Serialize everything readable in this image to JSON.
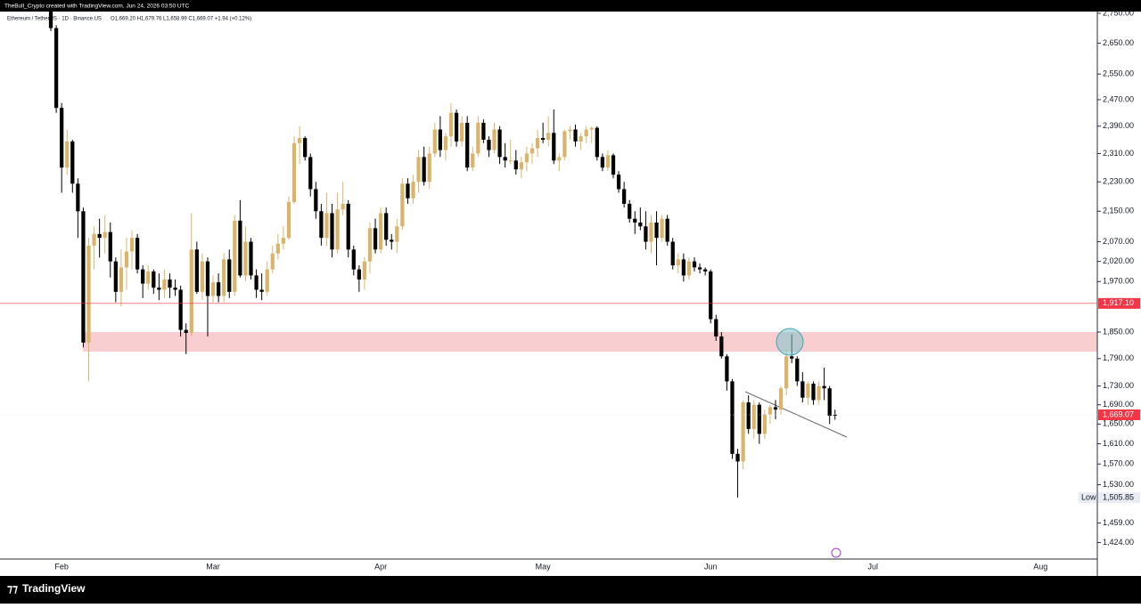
{
  "header": {
    "credit": "TheBull_Crypto created with TradingView.com, Jun 24, 2026 03:50 UTC",
    "symbol": "Ethereum / TetherUS · 1D · Binance.US",
    "ohlc": "O1,669.20 H1,679.76 L1,658.99 C1,669.07 +1.94 (+0.12%)"
  },
  "footer": {
    "brand": "TradingView"
  },
  "chart_data": {
    "type": "candlestick",
    "log_scale": true,
    "bull_color": "#dbb46c",
    "bear_color": "#000000",
    "categories": [
      null,
      null,
      "Feb",
      null,
      null,
      null,
      null,
      null,
      null,
      null,
      null,
      null,
      null,
      null,
      null,
      null,
      null,
      null,
      null,
      null,
      null,
      null,
      null,
      null,
      null,
      null,
      null,
      null,
      null,
      null,
      "Mar",
      null,
      null,
      null,
      null,
      null,
      null,
      null,
      null,
      null,
      null,
      null,
      null,
      null,
      null,
      null,
      null,
      null,
      null,
      null,
      null,
      null,
      null,
      null,
      null,
      null,
      null,
      null,
      null,
      null,
      null,
      "Apr",
      null,
      null,
      null,
      null,
      null,
      null,
      null,
      null,
      null,
      null,
      null,
      null,
      null,
      null,
      null,
      null,
      null,
      null,
      null,
      null,
      null,
      null,
      null,
      null,
      null,
      null,
      null,
      null,
      null,
      "May",
      null,
      null,
      null,
      null,
      null,
      null,
      null,
      null,
      null,
      null,
      null,
      null,
      null,
      null,
      null,
      null,
      null,
      null,
      null,
      null,
      null,
      null,
      null,
      null,
      null,
      null,
      null,
      null,
      null,
      null,
      "Jun",
      null,
      null,
      null,
      null,
      null,
      null,
      null,
      null,
      null,
      null,
      null,
      null,
      null,
      null,
      null,
      null,
      null,
      null,
      null,
      null,
      null,
      null,
      null,
      null,
      null,
      null,
      null,
      null,
      null,
      "Jul",
      null,
      null,
      null,
      null,
      null,
      null,
      null,
      null,
      null,
      null,
      null,
      null,
      null,
      null,
      null,
      null,
      null,
      null,
      null,
      null,
      null,
      null,
      null,
      null,
      null,
      null,
      null,
      null,
      null,
      null,
      "Aug",
      null,
      null,
      null,
      null,
      null,
      null,
      null,
      null,
      null,
      null
    ],
    "open": [
      2760,
      2700,
      2445,
      2270,
      2345,
      2225,
      2150,
      1826,
      2060,
      2090,
      2080,
      2095,
      2020,
      1945,
      2005,
      2045,
      2080,
      2000,
      1965,
      1995,
      1955,
      1950,
      1975,
      1955,
      1950,
      1855,
      1848,
      2050,
      1945,
      2020,
      1935,
      1968,
      1935,
      2025,
      1945,
      2125,
      1985,
      2070,
      1985,
      1950,
      1945,
      2000,
      2040,
      2065,
      2080,
      2175,
      2340,
      2355,
      2300,
      2210,
      2150,
      2080,
      2145,
      2050,
      2155,
      2170,
      2050,
      2000,
      1975,
      2020,
      2105,
      2050,
      2145,
      2075,
      2070,
      2110,
      2225,
      2185,
      2230,
      2300,
      2230,
      2310,
      2380,
      2320,
      2360,
      2430,
      2345,
      2400,
      2270,
      2310,
      2400,
      2350,
      2320,
      2380,
      2300,
      2290,
      2290,
      2265,
      2285,
      2310,
      2325,
      2355,
      2350,
      2370,
      2290,
      2300,
      2375,
      2380,
      2345,
      2360,
      2380,
      2385,
      2300,
      2270,
      2305,
      2250,
      2210,
      2170,
      2130,
      2120,
      2110,
      2070,
      2120,
      2080,
      2130,
      2070,
      2010,
      2025,
      1985,
      2020,
      2005,
      2000,
      1995,
      1880,
      1840,
      1795,
      1740,
      1590,
      1575,
      1695,
      1640,
      1690,
      1630,
      1670,
      1685,
      1680,
      1725,
      1795,
      1790,
      1740,
      1705,
      1735,
      1700,
      1730,
      1725,
      1669.2,
      null,
      null,
      null,
      null,
      null,
      null,
      null,
      null,
      null,
      null,
      null,
      null,
      null,
      null,
      null,
      null,
      null,
      null,
      null,
      null,
      null,
      null,
      null,
      null,
      null,
      null,
      null,
      null,
      null,
      null,
      null,
      null,
      null,
      null,
      null,
      null,
      null,
      null,
      null,
      null,
      null,
      null,
      null,
      null,
      null,
      null,
      null,
      null
    ],
    "high": [
      2790,
      2710,
      2460,
      2380,
      2350,
      2240,
      2160,
      2080,
      2110,
      2130,
      2140,
      2120,
      2030,
      2050,
      2080,
      2100,
      2090,
      2010,
      2010,
      2000,
      1990,
      2000,
      1990,
      1975,
      1960,
      1870,
      2145,
      2070,
      2040,
      2030,
      1985,
      1990,
      2040,
      2050,
      2140,
      2180,
      2110,
      2080,
      2000,
      1990,
      2020,
      2060,
      2090,
      2110,
      2190,
      2360,
      2390,
      2360,
      2310,
      2230,
      2170,
      2200,
      2170,
      2200,
      2230,
      2180,
      2060,
      2010,
      2030,
      2120,
      2130,
      2160,
      2160,
      2090,
      2130,
      2240,
      2240,
      2250,
      2320,
      2330,
      2330,
      2400,
      2420,
      2370,
      2460,
      2440,
      2420,
      2420,
      2330,
      2420,
      2410,
      2360,
      2400,
      2390,
      2340,
      2350,
      2320,
      2300,
      2330,
      2340,
      2380,
      2400,
      2420,
      2440,
      2310,
      2380,
      2390,
      2395,
      2370,
      2390,
      2390,
      2390,
      2310,
      2320,
      2310,
      2260,
      2230,
      2180,
      2150,
      2160,
      2150,
      2140,
      2150,
      2140,
      2140,
      2080,
      2040,
      2040,
      2030,
      2030,
      2015,
      2005,
      2000,
      1890,
      1850,
      1800,
      1745,
      1600,
      1700,
      1710,
      1700,
      1695,
      1680,
      1690,
      1700,
      1730,
      1810,
      1845,
      1795,
      1760,
      1740,
      1740,
      1740,
      1770,
      1730,
      1679.76,
      null,
      null,
      null,
      null,
      null,
      null,
      null,
      null,
      null,
      null,
      null,
      null,
      null,
      null,
      null,
      null,
      null,
      null,
      null,
      null,
      null,
      null,
      null,
      null,
      null,
      null,
      null,
      null,
      null,
      null,
      null,
      null,
      null,
      null,
      null,
      null,
      null,
      null,
      null,
      null,
      null,
      null,
      null,
      null,
      null,
      null,
      null,
      null
    ],
    "low": [
      2690,
      2430,
      2200,
      2250,
      2200,
      2080,
      1815,
      1740,
      2000,
      2030,
      2040,
      1980,
      1920,
      1910,
      1950,
      2000,
      1990,
      1930,
      1950,
      1940,
      1925,
      1930,
      1930,
      1935,
      1840,
      1800,
      1840,
      1940,
      1925,
      1840,
      1920,
      1920,
      1920,
      1930,
      1935,
      1980,
      1970,
      1975,
      1930,
      1925,
      1935,
      1990,
      2025,
      2050,
      2075,
      2170,
      2280,
      2290,
      2190,
      2130,
      2060,
      2060,
      2030,
      2040,
      2140,
      2030,
      1985,
      1945,
      1950,
      1990,
      2040,
      2040,
      2060,
      2050,
      2040,
      2100,
      2170,
      2170,
      2200,
      2220,
      2210,
      2300,
      2300,
      2290,
      2330,
      2330,
      2330,
      2260,
      2260,
      2300,
      2340,
      2300,
      2310,
      2280,
      2270,
      2280,
      2250,
      2240,
      2260,
      2280,
      2300,
      2340,
      2330,
      2280,
      2260,
      2290,
      2350,
      2330,
      2320,
      2340,
      2340,
      2290,
      2260,
      2260,
      2240,
      2200,
      2160,
      2120,
      2090,
      2100,
      2050,
      2040,
      2010,
      2070,
      2060,
      2000,
      1990,
      1970,
      1975,
      1995,
      1990,
      1985,
      1870,
      1830,
      1790,
      1720,
      1580,
      1505.85,
      1560,
      1630,
      1620,
      1610,
      1620,
      1650,
      1660,
      1670,
      1710,
      1780,
      1730,
      1695,
      1690,
      1690,
      1690,
      1700,
      1650,
      1658.99,
      null,
      null,
      null,
      null,
      null,
      null,
      null,
      null,
      null,
      null,
      null,
      null,
      null,
      null,
      null,
      null,
      null,
      null,
      null,
      null,
      null,
      null,
      null,
      null,
      null,
      null,
      null,
      null,
      null,
      null,
      null,
      null,
      null,
      null,
      null,
      null,
      null,
      null,
      null,
      null,
      null,
      null,
      null,
      null,
      null,
      null,
      null,
      null
    ],
    "close": [
      2700,
      2445,
      2270,
      2345,
      2225,
      2150,
      1826,
      2060,
      2090,
      2080,
      2095,
      2020,
      1945,
      2005,
      2045,
      2080,
      2000,
      1965,
      1995,
      1955,
      1950,
      1975,
      1955,
      1950,
      1855,
      1848,
      2050,
      1945,
      2020,
      1935,
      1968,
      1935,
      2025,
      1945,
      2125,
      1985,
      2070,
      1985,
      1950,
      1945,
      2000,
      2040,
      2065,
      2080,
      2175,
      2340,
      2355,
      2300,
      2210,
      2150,
      2080,
      2145,
      2050,
      2155,
      2170,
      2050,
      2000,
      1975,
      2020,
      2105,
      2050,
      2145,
      2075,
      2070,
      2110,
      2225,
      2185,
      2230,
      2300,
      2230,
      2310,
      2380,
      2320,
      2360,
      2430,
      2345,
      2400,
      2270,
      2310,
      2400,
      2350,
      2320,
      2380,
      2300,
      2290,
      2290,
      2265,
      2285,
      2310,
      2325,
      2355,
      2350,
      2370,
      2290,
      2300,
      2375,
      2380,
      2345,
      2360,
      2380,
      2385,
      2300,
      2270,
      2305,
      2250,
      2210,
      2170,
      2130,
      2120,
      2110,
      2070,
      2120,
      2080,
      2130,
      2070,
      2010,
      2025,
      1985,
      2020,
      2005,
      2000,
      1995,
      1880,
      1840,
      1795,
      1740,
      1590,
      1575,
      1695,
      1640,
      1690,
      1630,
      1670,
      1685,
      1680,
      1725,
      1795,
      1790,
      1740,
      1705,
      1735,
      1700,
      1730,
      1725,
      1667,
      1669.07,
      null,
      null,
      null,
      null,
      null,
      null,
      null,
      null,
      null,
      null,
      null,
      null,
      null,
      null,
      null,
      null,
      null,
      null,
      null,
      null,
      null,
      null,
      null,
      null,
      null,
      null,
      null,
      null,
      null,
      null,
      null,
      null,
      null,
      null,
      null,
      null,
      null,
      null,
      null,
      null,
      null,
      null,
      null,
      null,
      null,
      null,
      null,
      null
    ],
    "ylim": [
      1395,
      2753
    ],
    "yticks": [
      {
        "value": 2750,
        "label": "2,750.00"
      },
      {
        "value": 2650,
        "label": "2,650.00"
      },
      {
        "value": 2550,
        "label": "2,550.00"
      },
      {
        "value": 2470,
        "label": "2,470.00"
      },
      {
        "value": 2390,
        "label": "2,390.00"
      },
      {
        "value": 2310,
        "label": "2,310.00"
      },
      {
        "value": 2230,
        "label": "2,230.00"
      },
      {
        "value": 2150,
        "label": "2,150.00"
      },
      {
        "value": 2070,
        "label": "2,070.00"
      },
      {
        "value": 2020,
        "label": "2,020.00"
      },
      {
        "value": 1970,
        "label": "1,970.00"
      },
      {
        "value": 1850,
        "label": "1,850.00"
      },
      {
        "value": 1790,
        "label": "1,790.00"
      },
      {
        "value": 1730,
        "label": "1,730.00"
      },
      {
        "value": 1690,
        "label": "1,690.00"
      },
      {
        "value": 1650,
        "label": "1,650.00"
      },
      {
        "value": 1610,
        "label": "1,610.00"
      },
      {
        "value": 1570,
        "label": "1,570.00"
      },
      {
        "value": 1530,
        "label": "1,530.00"
      },
      {
        "value": 1459,
        "label": "1,459.00"
      },
      {
        "value": 1424,
        "label": "1,424.00"
      }
    ],
    "hline": {
      "value": 1917.1,
      "label": "1,917.10",
      "color": "#f23645"
    },
    "last_price": {
      "value": 1669.07,
      "label": "1,669.07",
      "color": "#f23645"
    },
    "low_marker": {
      "text": "Low",
      "value": 1505.85,
      "label": "1,505.85"
    }
  }
}
